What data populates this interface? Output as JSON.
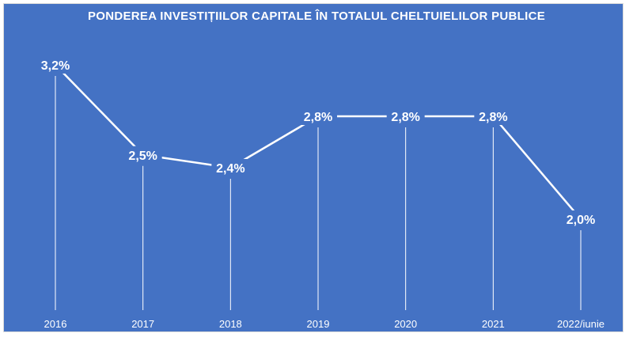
{
  "chart_data": {
    "type": "line",
    "title": "PONDEREA INVESTIȚIILOR CAPITALE ÎN TOTALUL CHELTUIELILOR PUBLICE",
    "categories": [
      "2016",
      "2017",
      "2018",
      "2019",
      "2020",
      "2021",
      "2022/iunie"
    ],
    "series": [
      {
        "values": [
          3.2,
          2.5,
          2.4,
          2.8,
          2.8,
          2.8,
          2.0
        ],
        "labels": [
          "3,2%",
          "2,5%",
          "2,4%",
          "2,8%",
          "2,8%",
          "2,8%",
          "2,0%"
        ],
        "color": "#ffffff"
      }
    ],
    "xlabel": "",
    "ylabel": "",
    "grid": false,
    "drop_lines": true,
    "background": "#4472c4"
  }
}
